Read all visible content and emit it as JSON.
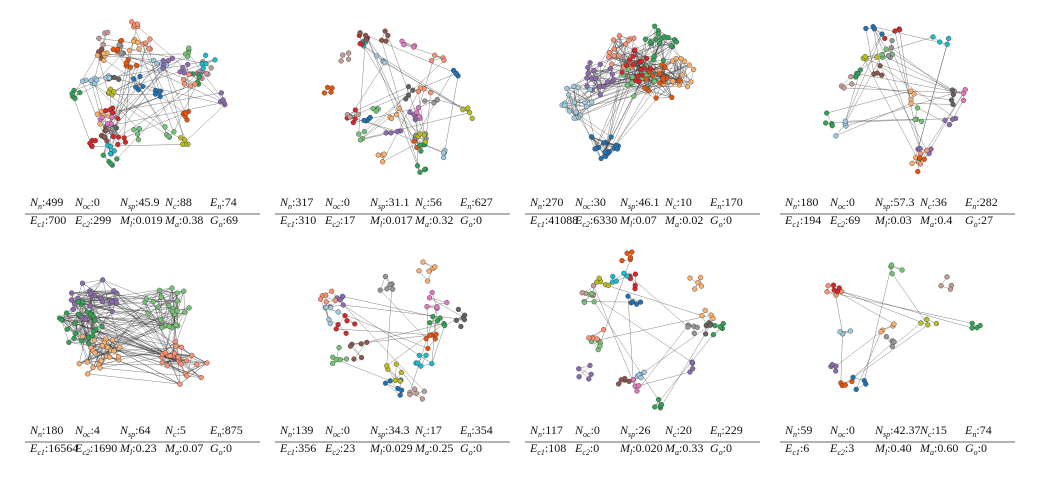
{
  "separator": ":",
  "row1_labels": [
    {
      "symbol": "N",
      "subscript": "n"
    },
    {
      "symbol": "N",
      "subscript": "oc"
    },
    {
      "symbol": "N",
      "subscript": "sp"
    },
    {
      "symbol": "N",
      "subscript": "c"
    },
    {
      "symbol": "E",
      "subscript": "n"
    }
  ],
  "row2_labels": [
    {
      "symbol": "E",
      "subscript": "c1"
    },
    {
      "symbol": "E",
      "subscript": "c2"
    },
    {
      "symbol": "M",
      "subscript": "l"
    },
    {
      "symbol": "M",
      "subscript": "a"
    },
    {
      "symbol": "G",
      "subscript": "o"
    }
  ],
  "panels": [
    {
      "row1": [
        "499",
        "0",
        "45.9",
        "88",
        "74"
      ],
      "row2": [
        "700",
        "299",
        "0.019",
        "0.38",
        "69"
      ]
    },
    {
      "row1": [
        "317",
        "0",
        "31.1",
        "56",
        "627"
      ],
      "row2": [
        "310",
        "17",
        "0.017",
        "0.32",
        "0"
      ]
    },
    {
      "row1": [
        "270",
        "30",
        "46.1",
        "10",
        "170"
      ],
      "row2": [
        "41088",
        "6330",
        "0.07",
        "0.02",
        "0"
      ]
    },
    {
      "row1": [
        "180",
        "0",
        "57.3",
        "36",
        "282"
      ],
      "row2": [
        "194",
        "69",
        "0.03",
        "0.4",
        "27"
      ]
    },
    {
      "row1": [
        "180",
        "4",
        "64",
        "5",
        "875"
      ],
      "row2": [
        "16564",
        "1690",
        "0.23",
        "0.07",
        "0"
      ]
    },
    {
      "row1": [
        "139",
        "0",
        "34.3",
        "17",
        "354"
      ],
      "row2": [
        "356",
        "23",
        "0.029",
        "0.25",
        "0"
      ]
    },
    {
      "row1": [
        "117",
        "0",
        "26",
        "20",
        "229"
      ],
      "row2": [
        "108",
        "0",
        "0.020",
        "0.33",
        "0"
      ]
    },
    {
      "row1": [
        "59",
        "0",
        "42.37",
        "15",
        "74"
      ],
      "row2": [
        "6",
        "3",
        "0.40",
        "0.60",
        "0"
      ]
    }
  ]
}
